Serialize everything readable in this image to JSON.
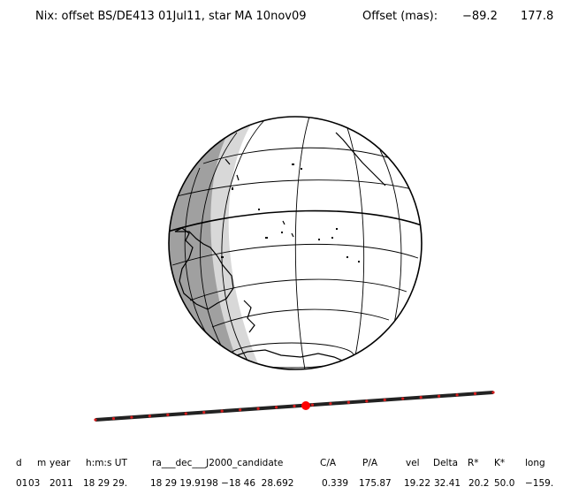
{
  "header": {
    "title": "Nix: offset BS/DE413 01Jul11, star MA 10nov09",
    "offset_label": "Offset (mas):",
    "offset_x": "−89.2",
    "offset_y": "177.8"
  },
  "colors": {
    "globe_shadow_dark": "#9a9a9a",
    "globe_shadow_light": "#d8d8d8",
    "track_line": "#222222",
    "track_marks": "#d61c1c",
    "center_marker": "#ff0000"
  },
  "footer": {
    "headers": [
      "d",
      "m",
      "year",
      "h:m:s UT",
      "ra___dec___J2000_candidate",
      "C/A",
      "P/A",
      "vel",
      "Delta",
      "R*",
      "K*",
      "long"
    ],
    "values": [
      "01",
      "03",
      "2011",
      "18 29 29.",
      "18 29 19.9198 −18 46  28.692",
      "0.339",
      "175.87",
      "19.22",
      "32.41",
      "20.2",
      "50.0",
      "−159."
    ]
  }
}
